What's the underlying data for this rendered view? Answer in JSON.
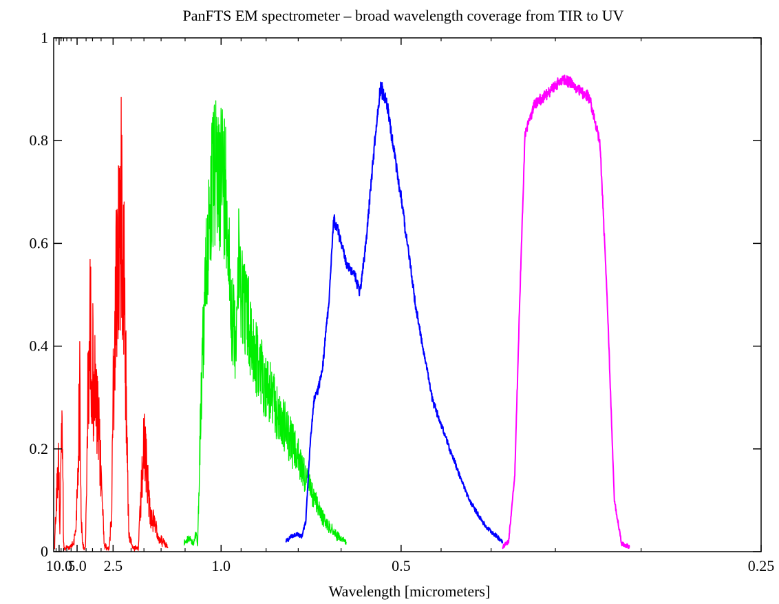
{
  "chart_data": {
    "type": "line",
    "title": "PanFTS EM spectrometer – broad wavelength coverage from TIR to UV",
    "xlabel": "Wavelength  [micrometers]",
    "ylabel": "",
    "x_scale": "reciprocal",
    "xlim": [
      14.3,
      0.25
    ],
    "ylim": [
      0,
      1
    ],
    "grid": false,
    "legend": "none",
    "x_ticks": [
      {
        "value": 10.0,
        "label": "10.0"
      },
      {
        "value": 5.0,
        "label": "5.0"
      },
      {
        "value": 2.5,
        "label": "2.5"
      },
      {
        "value": 1.0,
        "label": "1.0"
      },
      {
        "value": 0.5,
        "label": "0.5"
      },
      {
        "value": 0.25,
        "label": "0.25"
      }
    ],
    "y_ticks": [
      {
        "value": 0,
        "label": "0"
      },
      {
        "value": 0.2,
        "label": "0.2"
      },
      {
        "value": 0.4,
        "label": "0.4"
      },
      {
        "value": 0.6,
        "label": "0.6"
      },
      {
        "value": 0.8,
        "label": "0.8"
      },
      {
        "value": 1,
        "label": "1"
      }
    ],
    "series": [
      {
        "color": "#ff0000",
        "noise": 0.55,
        "points": [
          [
            13.3,
            0.01
          ],
          [
            13.0,
            0.05
          ],
          [
            12.5,
            0.08
          ],
          [
            12.0,
            0.12
          ],
          [
            11.5,
            0.15
          ],
          [
            11.0,
            0.2
          ],
          [
            10.5,
            0.23
          ],
          [
            10.2,
            0.26
          ],
          [
            10.0,
            0.24
          ],
          [
            9.8,
            0.1
          ],
          [
            9.6,
            0.05
          ],
          [
            9.4,
            0.15
          ],
          [
            9.0,
            0.25
          ],
          [
            8.8,
            0.3
          ],
          [
            8.5,
            0.35
          ],
          [
            8.3,
            0.25
          ],
          [
            8.1,
            0.05
          ],
          [
            7.9,
            0.01
          ],
          [
            7.5,
            0.005
          ],
          [
            7.0,
            0.01
          ],
          [
            6.5,
            0.01
          ],
          [
            6.0,
            0.015
          ],
          [
            5.6,
            0.02
          ],
          [
            5.2,
            0.05
          ],
          [
            5.0,
            0.15
          ],
          [
            4.8,
            0.3
          ],
          [
            4.65,
            0.45
          ],
          [
            4.5,
            0.1
          ],
          [
            4.35,
            0.02
          ],
          [
            4.2,
            0.01
          ],
          [
            4.05,
            0.01
          ],
          [
            3.95,
            0.2
          ],
          [
            3.85,
            0.4
          ],
          [
            3.75,
            0.55
          ],
          [
            3.65,
            0.6
          ],
          [
            3.5,
            0.5
          ],
          [
            3.3,
            0.4
          ],
          [
            3.1,
            0.3
          ],
          [
            2.95,
            0.15
          ],
          [
            2.85,
            0.02
          ],
          [
            2.75,
            0.01
          ],
          [
            2.65,
            0.01
          ],
          [
            2.55,
            0.1
          ],
          [
            2.5,
            0.4
          ],
          [
            2.4,
            0.7
          ],
          [
            2.3,
            0.88
          ],
          [
            2.2,
            0.9
          ],
          [
            2.15,
            0.7
          ],
          [
            2.1,
            0.3
          ],
          [
            2.05,
            0.05
          ],
          [
            1.95,
            0.01
          ],
          [
            1.85,
            0.01
          ],
          [
            1.8,
            0.15
          ],
          [
            1.75,
            0.28
          ],
          [
            1.7,
            0.22
          ],
          [
            1.65,
            0.1
          ],
          [
            1.6,
            0.08
          ],
          [
            1.55,
            0.05
          ],
          [
            1.5,
            0.03
          ],
          [
            1.45,
            0.02
          ],
          [
            1.42,
            0.01
          ]
        ]
      },
      {
        "color": "#00ee00",
        "noise": 0.35,
        "points": [
          [
            1.26,
            0.02
          ],
          [
            1.22,
            0.03
          ],
          [
            1.18,
            0.02
          ],
          [
            1.16,
            0.05
          ],
          [
            1.15,
            0.01
          ],
          [
            1.13,
            0.3
          ],
          [
            1.1,
            0.6
          ],
          [
            1.07,
            0.8
          ],
          [
            1.04,
            0.88
          ],
          [
            1.0,
            0.9
          ],
          [
            0.97,
            0.85
          ],
          [
            0.95,
            0.6
          ],
          [
            0.93,
            0.5
          ],
          [
            0.91,
            0.68
          ],
          [
            0.89,
            0.6
          ],
          [
            0.87,
            0.55
          ],
          [
            0.85,
            0.48
          ],
          [
            0.82,
            0.42
          ],
          [
            0.79,
            0.38
          ],
          [
            0.76,
            0.32
          ],
          [
            0.73,
            0.28
          ],
          [
            0.7,
            0.22
          ],
          [
            0.67,
            0.15
          ],
          [
            0.64,
            0.08
          ],
          [
            0.61,
            0.04
          ],
          [
            0.59,
            0.02
          ]
        ]
      },
      {
        "color": "#0000ff",
        "noise": 0.03,
        "points": [
          [
            0.735,
            0.02
          ],
          [
            0.72,
            0.03
          ],
          [
            0.705,
            0.035
          ],
          [
            0.69,
            0.03
          ],
          [
            0.68,
            0.06
          ],
          [
            0.67,
            0.2
          ],
          [
            0.66,
            0.3
          ],
          [
            0.65,
            0.32
          ],
          [
            0.64,
            0.36
          ],
          [
            0.625,
            0.5
          ],
          [
            0.615,
            0.66
          ],
          [
            0.605,
            0.63
          ],
          [
            0.59,
            0.57
          ],
          [
            0.575,
            0.55
          ],
          [
            0.565,
            0.51
          ],
          [
            0.555,
            0.6
          ],
          [
            0.54,
            0.8
          ],
          [
            0.53,
            0.92
          ],
          [
            0.52,
            0.88
          ],
          [
            0.5,
            0.7
          ],
          [
            0.48,
            0.48
          ],
          [
            0.46,
            0.3
          ],
          [
            0.44,
            0.2
          ],
          [
            0.42,
            0.1
          ],
          [
            0.405,
            0.05
          ],
          [
            0.39,
            0.02
          ]
        ]
      },
      {
        "color": "#ff00ff",
        "noise": 0.02,
        "points": [
          [
            0.39,
            0.01
          ],
          [
            0.385,
            0.02
          ],
          [
            0.38,
            0.15
          ],
          [
            0.376,
            0.5
          ],
          [
            0.372,
            0.82
          ],
          [
            0.365,
            0.88
          ],
          [
            0.355,
            0.9
          ],
          [
            0.345,
            0.93
          ],
          [
            0.335,
            0.91
          ],
          [
            0.328,
            0.89
          ],
          [
            0.322,
            0.8
          ],
          [
            0.318,
            0.5
          ],
          [
            0.314,
            0.1
          ],
          [
            0.31,
            0.015
          ],
          [
            0.306,
            0.01
          ]
        ]
      }
    ]
  }
}
